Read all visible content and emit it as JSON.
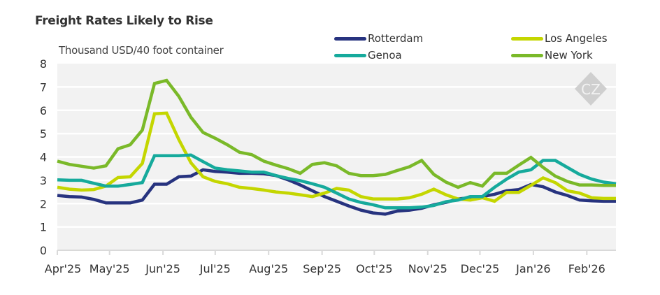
{
  "chart_data": {
    "type": "line",
    "title": "Freight Rates Likely to Rise",
    "ylabel": "Thousand USD/40 foot container",
    "xlabel": "",
    "ylim": [
      0,
      8
    ],
    "yticks": [
      "0",
      "1",
      "2",
      "3",
      "4",
      "5",
      "6",
      "7",
      "8"
    ],
    "xticks": [
      "Apr'25",
      "May'25",
      "Jun'25",
      "Jul'25",
      "Aug'25",
      "Sep'25",
      "Oct'25",
      "Nov'25",
      "Dec'25",
      "Jan'26",
      "Feb'26"
    ],
    "grid": true,
    "legend": "top-right",
    "frequency": "weekly",
    "series": [
      {
        "name": "Rotterdam",
        "color": "#27337f",
        "values": [
          2.35,
          2.3,
          2.28,
          2.18,
          2.03,
          2.03,
          2.03,
          2.15,
          2.83,
          2.83,
          3.15,
          3.18,
          3.45,
          3.38,
          3.35,
          3.3,
          3.3,
          3.28,
          3.2,
          3.02,
          2.8,
          2.55,
          2.3,
          2.1,
          1.9,
          1.72,
          1.6,
          1.55,
          1.68,
          1.72,
          1.8,
          1.95,
          2.05,
          2.2,
          2.25,
          2.3,
          2.4,
          2.55,
          2.6,
          2.82,
          2.72,
          2.5,
          2.35,
          2.15,
          2.12,
          2.1,
          2.1
        ]
      },
      {
        "name": "Los Angeles",
        "color": "#c4d600",
        "values": [
          2.7,
          2.62,
          2.58,
          2.6,
          2.75,
          3.12,
          3.15,
          3.72,
          5.85,
          5.88,
          4.75,
          3.75,
          3.15,
          2.95,
          2.85,
          2.7,
          2.65,
          2.58,
          2.5,
          2.45,
          2.38,
          2.3,
          2.45,
          2.65,
          2.58,
          2.3,
          2.2,
          2.2,
          2.2,
          2.25,
          2.4,
          2.62,
          2.38,
          2.2,
          2.15,
          2.25,
          2.1,
          2.48,
          2.48,
          2.78,
          3.1,
          2.9,
          2.55,
          2.45,
          2.25,
          2.22,
          2.22
        ]
      },
      {
        "name": "Genoa",
        "color": "#16aa9c",
        "values": [
          3.02,
          3.0,
          3.0,
          2.87,
          2.75,
          2.75,
          2.82,
          2.9,
          4.05,
          4.05,
          4.05,
          4.08,
          3.8,
          3.52,
          3.45,
          3.4,
          3.35,
          3.35,
          3.2,
          3.08,
          2.98,
          2.85,
          2.7,
          2.45,
          2.2,
          2.05,
          1.95,
          1.82,
          1.82,
          1.82,
          1.85,
          1.92,
          2.08,
          2.15,
          2.3,
          2.3,
          2.7,
          3.05,
          3.35,
          3.45,
          3.85,
          3.85,
          3.55,
          3.25,
          3.05,
          2.92,
          2.85
        ]
      },
      {
        "name": "New York",
        "color": "#7ab929",
        "values": [
          3.82,
          3.68,
          3.6,
          3.52,
          3.62,
          4.35,
          4.52,
          5.15,
          7.15,
          7.28,
          6.6,
          5.7,
          5.05,
          4.8,
          4.52,
          4.2,
          4.1,
          3.82,
          3.65,
          3.5,
          3.3,
          3.68,
          3.75,
          3.62,
          3.3,
          3.2,
          3.2,
          3.25,
          3.42,
          3.58,
          3.85,
          3.25,
          2.92,
          2.7,
          2.9,
          2.75,
          3.3,
          3.3,
          3.65,
          3.98,
          3.55,
          3.18,
          2.95,
          2.8,
          2.8,
          2.78,
          2.78
        ]
      }
    ]
  },
  "watermark": "CZ"
}
